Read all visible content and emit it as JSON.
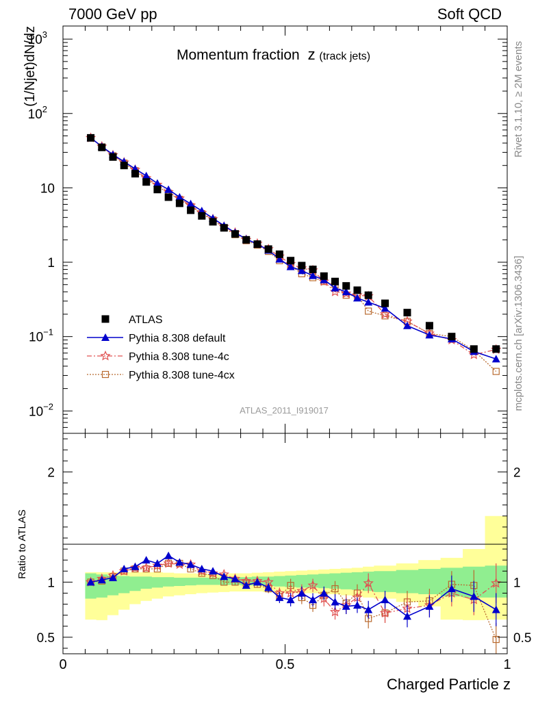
{
  "header": {
    "left": "7000 GeV pp",
    "right": "Soft QCD"
  },
  "side": {
    "rivet": "Rivet 3.1.10, ≥ 2M events",
    "mcplots": "mcplots.cern.ch [arXiv:1306.3436]"
  },
  "colors": {
    "atlas": "#000000",
    "default": "#0000cc",
    "tune4c": "#e05050",
    "tune4cx": "#b8692e",
    "band_inner": "#90ee90",
    "band_outer": "#ffff99"
  },
  "chart_data": [
    {
      "type": "scatter",
      "title": "Momentum fraction",
      "title_var": "z",
      "title_sub": "(track jets)",
      "ylabel": "(1/Njet)dN/dz",
      "watermark": "ATLAS_2011_I919017",
      "yscale": "log",
      "xlim": [
        0,
        1
      ],
      "ylim": [
        0.005,
        1500
      ],
      "y_ticks": [
        {
          "value": 0.01,
          "base": "10",
          "exp": "−2"
        },
        {
          "value": 0.1,
          "base": "10",
          "exp": "−1"
        },
        {
          "value": 1,
          "base": "1",
          "exp": ""
        },
        {
          "value": 10,
          "base": "10",
          "exp": ""
        },
        {
          "value": 100,
          "base": "10",
          "exp": "2"
        },
        {
          "value": 1000,
          "base": "10",
          "exp": "3"
        }
      ],
      "legend": [
        {
          "label": "ATLAS",
          "series": "atlas"
        },
        {
          "label": "Pythia 8.308 default",
          "series": "default"
        },
        {
          "label": "Pythia 8.308 tune-4c",
          "series": "tune4c"
        },
        {
          "label": "Pythia 8.308 tune-4cx",
          "series": "tune4cx"
        }
      ],
      "x": [
        0.0625,
        0.0875,
        0.1125,
        0.1375,
        0.1625,
        0.1875,
        0.2125,
        0.2375,
        0.2625,
        0.2875,
        0.3125,
        0.3375,
        0.3625,
        0.3875,
        0.4125,
        0.4375,
        0.4625,
        0.4875,
        0.5125,
        0.5375,
        0.5625,
        0.5875,
        0.6125,
        0.6375,
        0.6625,
        0.6875,
        0.725,
        0.775,
        0.825,
        0.875,
        0.925,
        0.975
      ],
      "series": [
        {
          "key": "atlas",
          "name": "ATLAS",
          "values": [
            47,
            35,
            26,
            20,
            15.5,
            12,
            9.5,
            7.5,
            6.2,
            5.0,
            4.2,
            3.5,
            2.9,
            2.4,
            2.0,
            1.75,
            1.5,
            1.28,
            1.05,
            0.9,
            0.8,
            0.65,
            0.55,
            0.48,
            0.42,
            0.36,
            0.28,
            0.21,
            0.14,
            0.1,
            0.068,
            0.068
          ]
        },
        {
          "key": "default",
          "name": "Pythia 8.308 default",
          "values": [
            47,
            36,
            28,
            22.5,
            18,
            14.5,
            11.5,
            9.5,
            7.5,
            6.1,
            4.9,
            3.9,
            3.1,
            2.5,
            2.05,
            1.75,
            1.45,
            1.1,
            0.87,
            0.77,
            0.66,
            0.58,
            0.45,
            0.4,
            0.33,
            0.29,
            0.24,
            0.14,
            0.105,
            0.093,
            0.063,
            0.05
          ]
        },
        {
          "key": "tune4c",
          "name": "Pythia 8.308 tune-4c",
          "values": [
            47,
            36,
            27.5,
            22,
            17.5,
            13.5,
            11,
            8.8,
            7.2,
            5.8,
            4.6,
            3.8,
            3.0,
            2.5,
            2.0,
            1.78,
            1.5,
            1.2,
            0.95,
            0.83,
            0.78,
            0.55,
            0.4,
            0.38,
            0.36,
            0.35,
            0.2,
            0.16,
            0.11,
            0.09,
            0.057,
            0.067
          ]
        },
        {
          "key": "tune4cx",
          "name": "Pythia 8.308 tune-4cx",
          "values": [
            47,
            35.5,
            27,
            21.5,
            17,
            13,
            10.5,
            8.5,
            7.0,
            5.6,
            4.5,
            3.7,
            2.9,
            2.35,
            1.95,
            1.7,
            1.4,
            1.05,
            0.9,
            0.7,
            0.62,
            0.55,
            0.5,
            0.36,
            0.36,
            0.22,
            0.19,
            0.16,
            0.11,
            0.1,
            0.065,
            0.034
          ]
        }
      ]
    },
    {
      "type": "line",
      "ylabel": "Ratio to ATLAS",
      "xlabel": "Charged Particle z",
      "xlim": [
        0,
        1
      ],
      "ylim": [
        0.35,
        2.35
      ],
      "x_ticks": [
        0,
        0.5,
        1
      ],
      "x_tick_labels": [
        "0",
        "0.5",
        "1"
      ],
      "y_ticks": [
        0.5,
        1,
        2
      ],
      "y_tick_labels": [
        "0.5",
        "1",
        "2"
      ],
      "band_edges": [
        0.05,
        0.075,
        0.1,
        0.125,
        0.15,
        0.175,
        0.2,
        0.225,
        0.25,
        0.275,
        0.3,
        0.325,
        0.35,
        0.375,
        0.4,
        0.425,
        0.45,
        0.475,
        0.5,
        0.525,
        0.55,
        0.575,
        0.6,
        0.625,
        0.65,
        0.675,
        0.7,
        0.75,
        0.8,
        0.85,
        0.9,
        0.95,
        1.0
      ],
      "band_inner": {
        "lo": [
          0.85,
          0.86,
          0.88,
          0.9,
          0.92,
          0.94,
          0.95,
          0.96,
          0.965,
          0.97,
          0.975,
          0.975,
          0.975,
          0.975,
          0.97,
          0.97,
          0.965,
          0.96,
          0.955,
          0.95,
          0.95,
          0.945,
          0.94,
          0.935,
          0.93,
          0.92,
          0.91,
          0.9,
          0.89,
          0.87,
          0.86,
          0.86
        ],
        "hi": [
          1.08,
          1.07,
          1.06,
          1.055,
          1.05,
          1.05,
          1.045,
          1.045,
          1.04,
          1.04,
          1.04,
          1.04,
          1.04,
          1.045,
          1.045,
          1.05,
          1.05,
          1.055,
          1.06,
          1.065,
          1.07,
          1.075,
          1.08,
          1.085,
          1.09,
          1.095,
          1.1,
          1.11,
          1.12,
          1.13,
          1.14,
          1.15
        ]
      },
      "band_outer": {
        "lo": [
          0.66,
          0.655,
          0.7,
          0.75,
          0.8,
          0.83,
          0.85,
          0.87,
          0.88,
          0.89,
          0.9,
          0.905,
          0.91,
          0.915,
          0.915,
          0.915,
          0.91,
          0.905,
          0.9,
          0.9,
          0.9,
          0.89,
          0.89,
          0.88,
          0.87,
          0.86,
          0.85,
          0.82,
          0.78,
          0.66,
          0.655,
          0.66
        ],
        "hi": [
          1.09,
          1.09,
          1.09,
          1.09,
          1.09,
          1.09,
          1.09,
          1.085,
          1.08,
          1.08,
          1.075,
          1.075,
          1.075,
          1.08,
          1.08,
          1.085,
          1.09,
          1.095,
          1.1,
          1.105,
          1.11,
          1.115,
          1.12,
          1.125,
          1.13,
          1.14,
          1.15,
          1.17,
          1.2,
          1.22,
          1.3,
          1.6
        ]
      },
      "x": [
        0.0625,
        0.0875,
        0.1125,
        0.1375,
        0.1625,
        0.1875,
        0.2125,
        0.2375,
        0.2625,
        0.2875,
        0.3125,
        0.3375,
        0.3625,
        0.3875,
        0.4125,
        0.4375,
        0.4625,
        0.4875,
        0.5125,
        0.5375,
        0.5625,
        0.5875,
        0.6125,
        0.6375,
        0.6625,
        0.6875,
        0.725,
        0.775,
        0.825,
        0.875,
        0.925,
        0.975
      ],
      "series": [
        {
          "key": "default",
          "name": "Pythia 8.308 default",
          "values": [
            1.0,
            1.02,
            1.04,
            1.12,
            1.14,
            1.2,
            1.17,
            1.24,
            1.18,
            1.16,
            1.12,
            1.1,
            1.05,
            1.03,
            0.97,
            1.0,
            0.95,
            0.86,
            0.84,
            0.9,
            0.84,
            0.9,
            0.82,
            0.78,
            0.79,
            0.75,
            0.84,
            0.69,
            0.78,
            0.94,
            0.87,
            0.75
          ],
          "err": [
            0.02,
            0.02,
            0.02,
            0.02,
            0.02,
            0.02,
            0.02,
            0.02,
            0.02,
            0.02,
            0.02,
            0.02,
            0.02,
            0.03,
            0.03,
            0.03,
            0.04,
            0.05,
            0.06,
            0.06,
            0.06,
            0.06,
            0.07,
            0.07,
            0.07,
            0.08,
            0.08,
            0.1,
            0.1,
            0.12,
            0.14,
            0.15
          ]
        },
        {
          "key": "tune4c",
          "name": "Pythia 8.308 tune-4c",
          "values": [
            1.0,
            1.03,
            1.06,
            1.1,
            1.13,
            1.13,
            1.15,
            1.17,
            1.16,
            1.16,
            1.1,
            1.08,
            1.07,
            1.03,
            1.01,
            1.01,
            1.0,
            0.9,
            0.9,
            0.92,
            0.97,
            0.85,
            0.73,
            0.79,
            0.86,
            0.99,
            0.72,
            0.76,
            0.79,
            0.9,
            0.84,
            0.99
          ],
          "err": [
            0.02,
            0.02,
            0.02,
            0.02,
            0.02,
            0.02,
            0.02,
            0.02,
            0.02,
            0.02,
            0.02,
            0.02,
            0.02,
            0.03,
            0.03,
            0.03,
            0.04,
            0.05,
            0.06,
            0.06,
            0.06,
            0.07,
            0.07,
            0.08,
            0.08,
            0.09,
            0.09,
            0.1,
            0.11,
            0.12,
            0.14,
            0.18
          ]
        },
        {
          "key": "tune4cx",
          "name": "Pythia 8.308 tune-4cx",
          "values": [
            1.0,
            1.01,
            1.05,
            1.1,
            1.12,
            1.12,
            1.12,
            1.17,
            1.17,
            1.12,
            1.08,
            1.06,
            1.0,
            1.0,
            0.99,
            0.98,
            0.94,
            0.87,
            0.97,
            0.86,
            0.79,
            0.88,
            0.94,
            0.81,
            0.9,
            0.67,
            0.72,
            0.82,
            0.83,
            0.98,
            0.97,
            0.48
          ],
          "err": [
            0.02,
            0.02,
            0.02,
            0.02,
            0.02,
            0.02,
            0.02,
            0.02,
            0.02,
            0.02,
            0.02,
            0.02,
            0.02,
            0.03,
            0.03,
            0.03,
            0.04,
            0.05,
            0.06,
            0.06,
            0.06,
            0.07,
            0.07,
            0.08,
            0.08,
            0.09,
            0.09,
            0.1,
            0.11,
            0.12,
            0.14,
            0.15
          ]
        }
      ]
    }
  ]
}
